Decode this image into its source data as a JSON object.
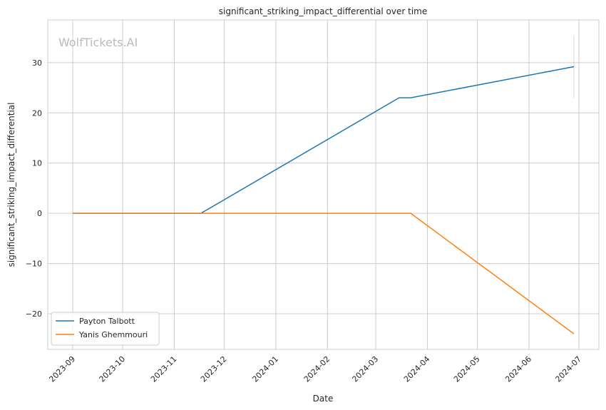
{
  "chart_data": {
    "type": "line",
    "title": "significant_striking_impact_differential over time",
    "xlabel": "Date",
    "ylabel": "significant_striking_impact_differential",
    "watermark": "WolfTickets.AI",
    "xlim": [
      "2023-08-17",
      "2024-07-13"
    ],
    "ylim": [
      -27.1,
      38.5
    ],
    "x_ticks": [
      "2023-09",
      "2023-10",
      "2023-11",
      "2023-12",
      "2024-01",
      "2024-02",
      "2024-03",
      "2024-04",
      "2024-05",
      "2024-06",
      "2024-07"
    ],
    "y_ticks": [
      -20,
      -10,
      0,
      10,
      20,
      30
    ],
    "grid": true,
    "legend_position": "bottom-left",
    "series": [
      {
        "name": "Payton Talbott",
        "color": "#1f77b4",
        "points": [
          [
            "2023-09-01",
            0
          ],
          [
            "2023-11-17",
            0
          ],
          [
            "2024-03-15",
            23
          ],
          [
            "2024-03-22",
            23
          ],
          [
            "2024-06-28",
            29.2
          ]
        ],
        "band": {
          "x": "2024-06-28",
          "low": 23,
          "high": 35.5
        }
      },
      {
        "name": "Yanis Ghemmouri",
        "color": "#ff7f0e",
        "points": [
          [
            "2023-09-01",
            0
          ],
          [
            "2024-03-22",
            0
          ],
          [
            "2024-06-28",
            -24
          ]
        ]
      }
    ]
  }
}
